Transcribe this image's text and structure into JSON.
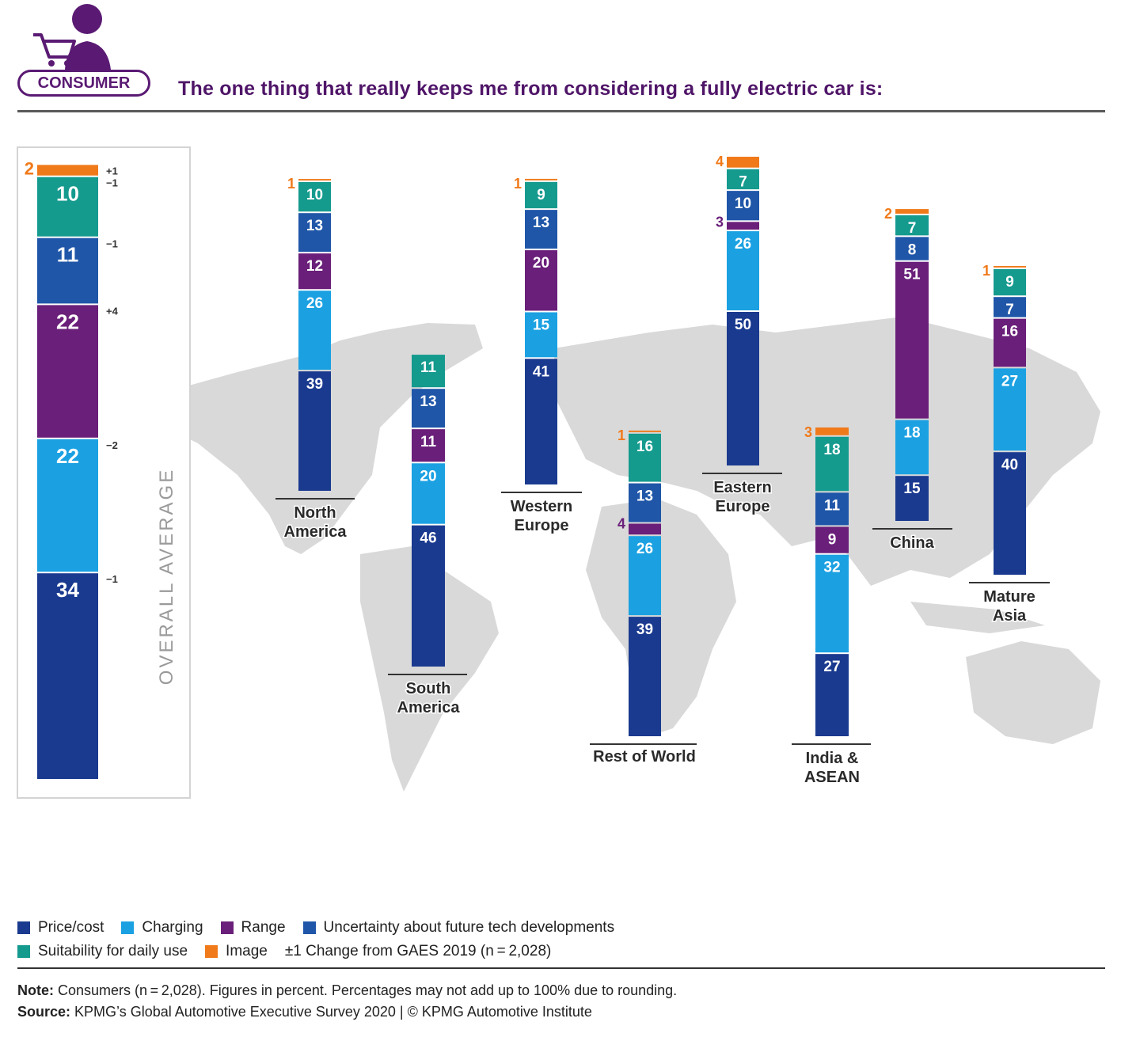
{
  "header": {
    "badge": "CONSUMER",
    "title": "The one thing that really keeps me from considering a fully electric car is:"
  },
  "colors": {
    "price": "#1a3a8f",
    "charging": "#1ba1e2",
    "range": "#6a1f7a",
    "uncertainty": "#1f56a8",
    "suitability": "#159a8e",
    "image": "#f07a1a"
  },
  "chart_data": {
    "type": "bar",
    "stacked": true,
    "categories": [
      "OVERALL AVERAGE",
      "North America",
      "South America",
      "Western Europe",
      "Rest of World",
      "Eastern Europe",
      "India & ASEAN",
      "China",
      "Mature Asia"
    ],
    "series": [
      {
        "name": "Price/cost",
        "key": "price",
        "values": [
          34,
          39,
          46,
          41,
          39,
          50,
          27,
          15,
          40
        ]
      },
      {
        "name": "Charging",
        "key": "charging",
        "values": [
          22,
          26,
          20,
          15,
          26,
          26,
          32,
          18,
          27
        ]
      },
      {
        "name": "Range",
        "key": "range",
        "values": [
          22,
          12,
          11,
          20,
          4,
          3,
          9,
          51,
          16
        ]
      },
      {
        "name": "Uncertainty about future tech developments",
        "key": "uncertainty",
        "values": [
          11,
          13,
          13,
          13,
          13,
          10,
          11,
          8,
          7
        ]
      },
      {
        "name": "Suitability for daily use",
        "key": "suitability",
        "values": [
          10,
          10,
          11,
          9,
          16,
          7,
          18,
          7,
          9
        ]
      },
      {
        "name": "Image",
        "key": "image",
        "values": [
          2,
          1,
          0,
          1,
          1,
          4,
          3,
          2,
          1
        ]
      }
    ],
    "overall_changes": {
      "price": "−1",
      "charging": "−2",
      "range": "+4",
      "uncertainty": "−1",
      "suitability": "−1",
      "image": "+1"
    },
    "region_labels": [
      [
        "North",
        "America"
      ],
      [
        "South",
        "America"
      ],
      [
        "Western",
        "Europe"
      ],
      [
        "Rest of World"
      ],
      [
        "Eastern",
        "Europe"
      ],
      [
        "India &",
        "ASEAN"
      ],
      [
        "China"
      ],
      [
        "Mature",
        "Asia"
      ]
    ],
    "overall_label": "OVERALL AVERAGE",
    "unit": "percent"
  },
  "legend": {
    "row1": [
      {
        "key": "price",
        "label": "Price/cost"
      },
      {
        "key": "charging",
        "label": "Charging"
      },
      {
        "key": "range",
        "label": "Range"
      },
      {
        "key": "uncertainty",
        "label": "Uncertainty about future tech developments"
      }
    ],
    "row2": [
      {
        "key": "suitability",
        "label": "Suitability for daily use"
      },
      {
        "key": "image",
        "label": "Image"
      }
    ],
    "change_note": "±1 Change from GAES 2019 (n = 2,028)"
  },
  "footer": {
    "note_label": "Note:",
    "note_text": " Consumers (n = 2,028). Figures in percent. Percentages may not add up to 100% due to rounding.",
    "source_label": "Source:",
    "source_text": " KPMG’s Global Automotive Executive Survey 2020 | © KPMG Automotive Institute"
  }
}
